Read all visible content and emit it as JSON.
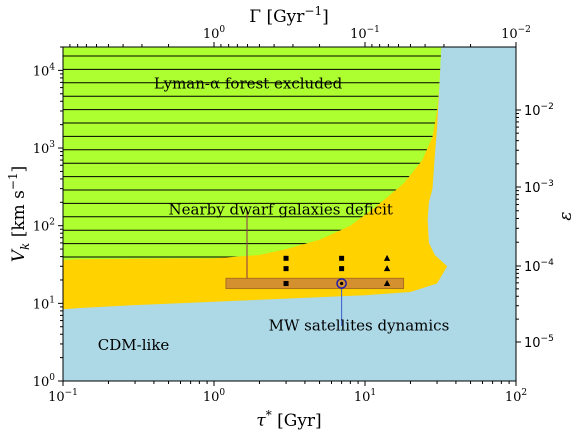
{
  "chart_data": {
    "type": "region",
    "title": "",
    "xlabel": "τ* [Gyr]",
    "ylabel": "V_k [km s^-1]",
    "top_xlabel": "Γ [Gyr^-1]",
    "right_ylabel": "ε",
    "xscale": "log",
    "yscale": "log",
    "xlim": [
      0.1,
      100
    ],
    "ylim": [
      1,
      20000
    ],
    "x_tick_labels": [
      "10^-1",
      "10^0",
      "10^1",
      "10^2"
    ],
    "y_tick_labels": [
      "10^0",
      "10^1",
      "10^2",
      "10^3",
      "10^4"
    ],
    "top_tick_labels": [
      "10^0",
      "10^-1",
      "10^-2"
    ],
    "right_tick_labels": [
      "10^-5",
      "10^-4",
      "10^-3",
      "10^-2"
    ],
    "colors": {
      "background": "#add8e6",
      "lyman_alpha": "#adff2f",
      "dwarf": "#ffd200",
      "mw_band": "#d4902e",
      "mw_band_edge": "#a8701e",
      "marker": "#000000",
      "mw_circle": "#1a1ab4",
      "mw_leader": "#3a5fd0",
      "dwarf_leader": "#8a3050"
    },
    "regions": [
      {
        "name": "Lyman-α forest excluded",
        "boundary": [
          [
            0.1,
            36
          ],
          [
            0.13,
            37
          ],
          [
            0.3,
            37.5
          ],
          [
            1,
            38
          ],
          [
            2,
            42
          ],
          [
            3,
            50
          ],
          [
            5,
            66
          ],
          [
            8,
            100
          ],
          [
            12,
            180
          ],
          [
            18,
            350
          ],
          [
            24,
            700
          ],
          [
            28,
            1400
          ],
          [
            30,
            3000
          ],
          [
            31,
            6000
          ],
          [
            32,
            20000
          ]
        ]
      },
      {
        "name": "Nearby dwarf galaxies deficit",
        "boundary": [
          [
            0.1,
            8.4
          ],
          [
            0.13,
            8.7
          ],
          [
            0.3,
            9.5
          ],
          [
            1,
            10.5
          ],
          [
            3,
            11.5
          ],
          [
            10,
            12.7
          ],
          [
            20,
            14
          ],
          [
            30,
            18
          ],
          [
            35,
            30
          ],
          [
            29,
            42
          ],
          [
            26.5,
            60
          ],
          [
            26,
            120
          ],
          [
            26.5,
            200
          ],
          [
            28,
            300
          ],
          [
            29,
            800
          ],
          [
            30,
            1800
          ],
          [
            31,
            6000
          ],
          [
            32,
            20000
          ]
        ]
      }
    ],
    "mw_band": {
      "x": [
        1.2,
        18
      ],
      "y": [
        15.5,
        21
      ]
    },
    "markers": [
      {
        "shape": "square",
        "x": 3,
        "y": [
          18,
          28,
          38
        ]
      },
      {
        "shape": "square",
        "x": 7,
        "y": [
          28,
          38
        ]
      },
      {
        "shape": "circle",
        "x": 7,
        "y": 18
      },
      {
        "shape": "triangle",
        "x": 14,
        "y": [
          18,
          28,
          38
        ]
      }
    ],
    "annotations": [
      {
        "text": "Lyman-α forest excluded",
        "x": 0.4,
        "y": 5800
      },
      {
        "text": "Nearby dwarf galaxies deficit",
        "x": 0.5,
        "y": 140
      },
      {
        "text": "MW satellites dynamics",
        "x": 2.3,
        "y": 4.5
      },
      {
        "text": "CDM-like",
        "x": 0.17,
        "y": 2.5
      }
    ]
  }
}
